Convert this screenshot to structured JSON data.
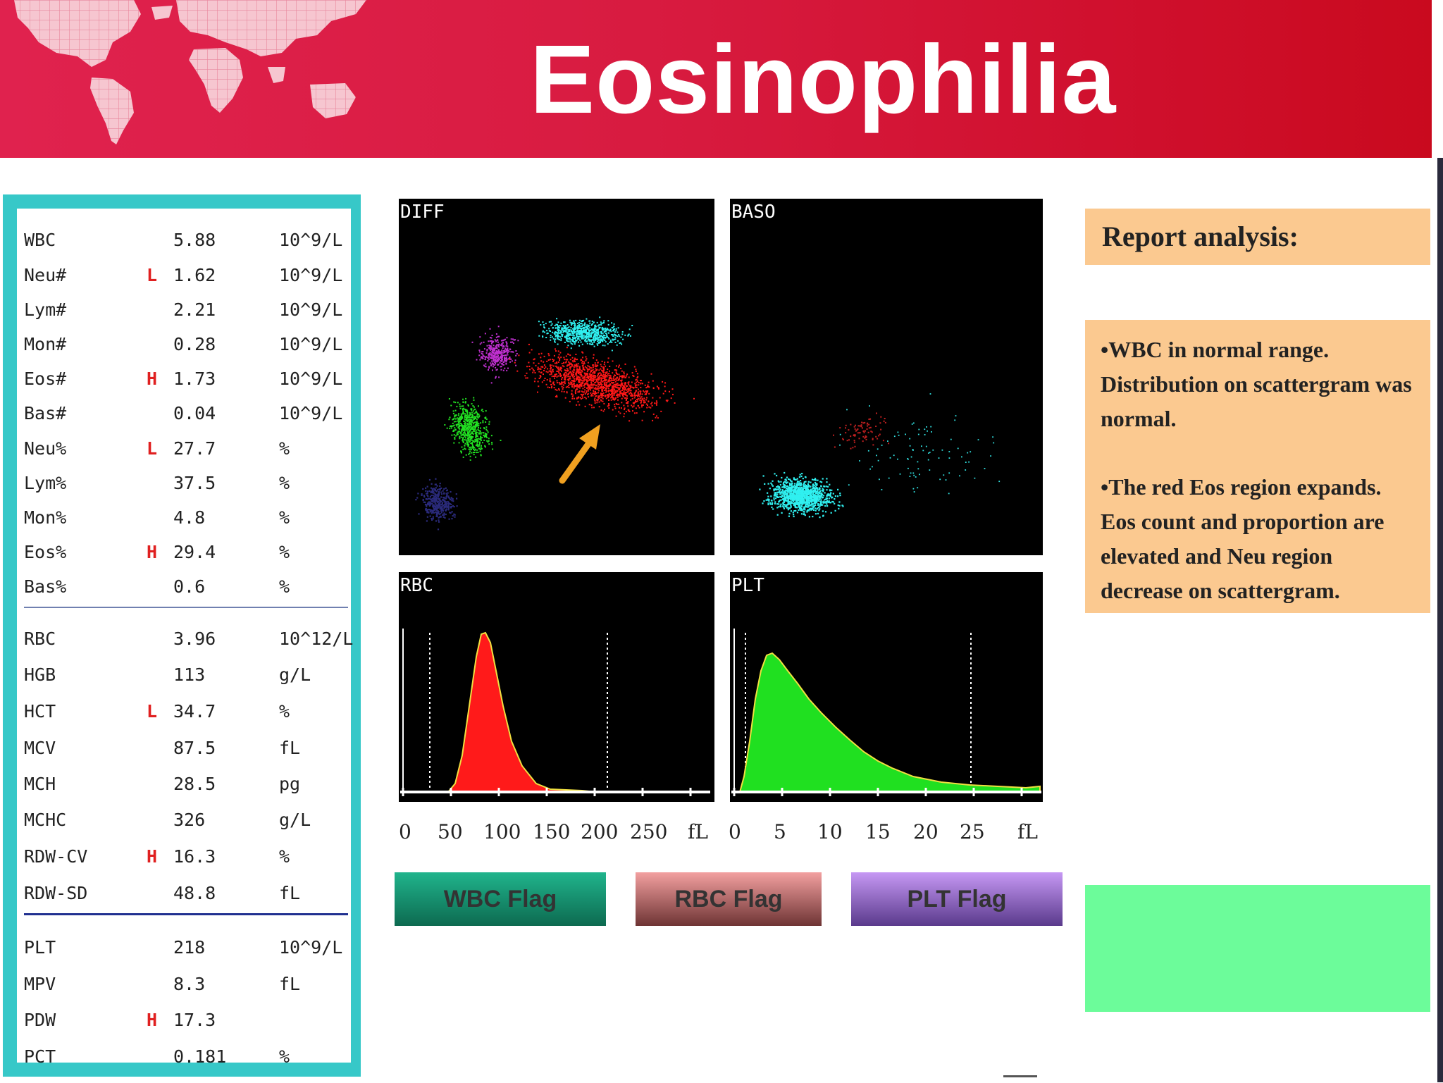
{
  "title": "Eosinophilia",
  "colors": {
    "header_red": "#d81b40",
    "panel_border": "#37c8c8",
    "analysis_bg": "#fbc990",
    "green_box": "#6cfc9a",
    "flag_high": "#e02020"
  },
  "report": {
    "wbc_rows": [
      {
        "name": "WBC",
        "flag": "",
        "value": "5.88",
        "unit": "10^9/L"
      },
      {
        "name": "Neu#",
        "flag": "L",
        "value": "1.62",
        "unit": "10^9/L"
      },
      {
        "name": "Lym#",
        "flag": "",
        "value": "2.21",
        "unit": "10^9/L"
      },
      {
        "name": "Mon#",
        "flag": "",
        "value": "0.28",
        "unit": "10^9/L"
      },
      {
        "name": "Eos#",
        "flag": "H",
        "value": "1.73",
        "unit": "10^9/L"
      },
      {
        "name": "Bas#",
        "flag": "",
        "value": "0.04",
        "unit": "10^9/L"
      },
      {
        "name": "Neu%",
        "flag": "L",
        "value": "27.7",
        "unit": "%"
      },
      {
        "name": "Lym%",
        "flag": "",
        "value": "37.5",
        "unit": "%"
      },
      {
        "name": "Mon%",
        "flag": "",
        "value": "4.8",
        "unit": "%"
      },
      {
        "name": "Eos%",
        "flag": "H",
        "value": "29.4",
        "unit": "%"
      },
      {
        "name": "Bas%",
        "flag": "",
        "value": "0.6",
        "unit": "%"
      }
    ],
    "rbc_rows": [
      {
        "name": "RBC",
        "flag": "",
        "value": "3.96",
        "unit": "10^12/L"
      },
      {
        "name": "HGB",
        "flag": "",
        "value": "113",
        "unit": "g/L"
      },
      {
        "name": "HCT",
        "flag": "L",
        "value": "34.7",
        "unit": "%"
      },
      {
        "name": "MCV",
        "flag": "",
        "value": "87.5",
        "unit": "fL"
      },
      {
        "name": "MCH",
        "flag": "",
        "value": "28.5",
        "unit": "pg"
      },
      {
        "name": "MCHC",
        "flag": "",
        "value": "326",
        "unit": "g/L"
      },
      {
        "name": "RDW-CV",
        "flag": "H",
        "value": "16.3",
        "unit": "%"
      },
      {
        "name": "RDW-SD",
        "flag": "",
        "value": "48.8",
        "unit": "fL"
      }
    ],
    "plt_rows": [
      {
        "name": "PLT",
        "flag": "",
        "value": "218",
        "unit": "10^9/L"
      },
      {
        "name": "MPV",
        "flag": "",
        "value": "8.3",
        "unit": "fL"
      },
      {
        "name": "PDW",
        "flag": "H",
        "value": "17.3",
        "unit": ""
      },
      {
        "name": "PCT",
        "flag": "",
        "value": "0.181",
        "unit": "%"
      }
    ]
  },
  "plots": {
    "diff_label": "DIFF",
    "baso_label": "BASO",
    "rbc_label": "RBC",
    "plt_label": "PLT",
    "rbc_axis": [
      "0",
      "50",
      "100",
      "150",
      "200",
      "250",
      "fL"
    ],
    "plt_axis": [
      "0",
      "5",
      "10",
      "15",
      "20",
      "25",
      "fL"
    ]
  },
  "flags": {
    "wbc": "WBC Flag",
    "rbc": "RBC Flag",
    "plt": "PLT Flag"
  },
  "analysis": {
    "heading": "Report analysis:",
    "point1": "•WBC in normal range. Distribution on scattergram was normal.",
    "point2": "•The red Eos region expands. Eos count and proportion are elevated and Neu region decrease on scattergram."
  }
}
